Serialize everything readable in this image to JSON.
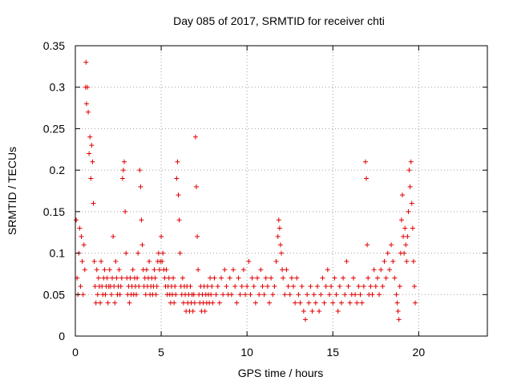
{
  "chart_data": {
    "type": "scatter",
    "title": "Day 085 of 2017, SRMTID for receiver chti",
    "xlabel": "GPS time / hours",
    "ylabel": "SRMTID / TECUs",
    "xlim": [
      0,
      24
    ],
    "ylim": [
      0,
      0.35
    ],
    "xticks": [
      0,
      5,
      10,
      15,
      20
    ],
    "yticks": [
      0,
      0.05,
      0.1,
      0.15,
      0.2,
      0.25,
      0.3,
      0.35
    ],
    "ytick_labels": [
      "0",
      "0.05",
      "0.1",
      "0.15",
      "0.2",
      "0.25",
      "0.3",
      "0.35"
    ],
    "grid": true,
    "marker": "+",
    "color": "#e00000",
    "series": [
      {
        "values": [
          [
            0.05,
            0.14
          ],
          [
            0.1,
            0.07
          ],
          [
            0.15,
            0.05
          ],
          [
            0.2,
            0.1
          ],
          [
            0.25,
            0.13
          ],
          [
            0.3,
            0.06
          ],
          [
            0.35,
            0.12
          ],
          [
            0.4,
            0.09
          ],
          [
            0.45,
            0.05
          ],
          [
            0.5,
            0.11
          ],
          [
            0.55,
            0.08
          ],
          [
            0.6,
            0.3
          ],
          [
            0.62,
            0.33
          ],
          [
            0.65,
            0.28
          ],
          [
            0.7,
            0.3
          ],
          [
            0.75,
            0.27
          ],
          [
            0.8,
            0.22
          ],
          [
            0.85,
            0.24
          ],
          [
            0.9,
            0.19
          ],
          [
            0.95,
            0.23
          ],
          [
            1.0,
            0.21
          ],
          [
            1.05,
            0.16
          ],
          [
            1.1,
            0.09
          ],
          [
            1.15,
            0.06
          ],
          [
            1.2,
            0.04
          ],
          [
            1.25,
            0.08
          ],
          [
            1.3,
            0.05
          ],
          [
            1.35,
            0.07
          ],
          [
            1.4,
            0.06
          ],
          [
            1.45,
            0.04
          ],
          [
            1.5,
            0.09
          ],
          [
            1.55,
            0.06
          ],
          [
            1.6,
            0.05
          ],
          [
            1.65,
            0.07
          ],
          [
            1.7,
            0.08
          ],
          [
            1.75,
            0.05
          ],
          [
            1.8,
            0.06
          ],
          [
            1.85,
            0.07
          ],
          [
            1.9,
            0.04
          ],
          [
            1.95,
            0.06
          ],
          [
            2.0,
            0.08
          ],
          [
            2.05,
            0.06
          ],
          [
            2.1,
            0.05
          ],
          [
            2.15,
            0.07
          ],
          [
            2.2,
            0.12
          ],
          [
            2.25,
            0.06
          ],
          [
            2.3,
            0.04
          ],
          [
            2.35,
            0.09
          ],
          [
            2.4,
            0.07
          ],
          [
            2.45,
            0.05
          ],
          [
            2.5,
            0.06
          ],
          [
            2.55,
            0.08
          ],
          [
            2.6,
            0.05
          ],
          [
            2.65,
            0.06
          ],
          [
            2.7,
            0.07
          ],
          [
            2.75,
            0.19
          ],
          [
            2.8,
            0.2
          ],
          [
            2.85,
            0.21
          ],
          [
            2.9,
            0.15
          ],
          [
            2.95,
            0.1
          ],
          [
            3.0,
            0.07
          ],
          [
            3.05,
            0.05
          ],
          [
            3.1,
            0.06
          ],
          [
            3.15,
            0.04
          ],
          [
            3.2,
            0.07
          ],
          [
            3.25,
            0.05
          ],
          [
            3.3,
            0.06
          ],
          [
            3.35,
            0.08
          ],
          [
            3.4,
            0.05
          ],
          [
            3.45,
            0.07
          ],
          [
            3.5,
            0.06
          ],
          [
            3.55,
            0.05
          ],
          [
            3.6,
            0.07
          ],
          [
            3.65,
            0.1
          ],
          [
            3.7,
            0.06
          ],
          [
            3.75,
            0.2
          ],
          [
            3.8,
            0.18
          ],
          [
            3.85,
            0.14
          ],
          [
            3.9,
            0.11
          ],
          [
            3.95,
            0.08
          ],
          [
            4.0,
            0.06
          ],
          [
            4.05,
            0.07
          ],
          [
            4.1,
            0.05
          ],
          [
            4.15,
            0.08
          ],
          [
            4.2,
            0.06
          ],
          [
            4.25,
            0.07
          ],
          [
            4.3,
            0.09
          ],
          [
            4.35,
            0.05
          ],
          [
            4.4,
            0.06
          ],
          [
            4.45,
            0.07
          ],
          [
            4.5,
            0.05
          ],
          [
            4.55,
            0.06
          ],
          [
            4.6,
            0.08
          ],
          [
            4.65,
            0.07
          ],
          [
            4.7,
            0.05
          ],
          [
            4.75,
            0.06
          ],
          [
            4.8,
            0.09
          ],
          [
            4.85,
            0.1
          ],
          [
            4.9,
            0.08
          ],
          [
            4.95,
            0.09
          ],
          [
            5.0,
            0.12
          ],
          [
            5.05,
            0.09
          ],
          [
            5.1,
            0.1
          ],
          [
            5.15,
            0.08
          ],
          [
            5.2,
            0.07
          ],
          [
            5.25,
            0.06
          ],
          [
            5.3,
            0.08
          ],
          [
            5.35,
            0.05
          ],
          [
            5.4,
            0.06
          ],
          [
            5.45,
            0.07
          ],
          [
            5.5,
            0.05
          ],
          [
            5.55,
            0.04
          ],
          [
            5.6,
            0.06
          ],
          [
            5.65,
            0.05
          ],
          [
            5.7,
            0.07
          ],
          [
            5.75,
            0.04
          ],
          [
            5.8,
            0.06
          ],
          [
            5.85,
            0.05
          ],
          [
            5.9,
            0.19
          ],
          [
            5.95,
            0.21
          ],
          [
            6.0,
            0.17
          ],
          [
            6.05,
            0.14
          ],
          [
            6.1,
            0.1
          ],
          [
            6.15,
            0.06
          ],
          [
            6.2,
            0.05
          ],
          [
            6.25,
            0.07
          ],
          [
            6.3,
            0.04
          ],
          [
            6.35,
            0.06
          ],
          [
            6.4,
            0.05
          ],
          [
            6.45,
            0.03
          ],
          [
            6.5,
            0.06
          ],
          [
            6.55,
            0.04
          ],
          [
            6.6,
            0.05
          ],
          [
            6.65,
            0.03
          ],
          [
            6.7,
            0.06
          ],
          [
            6.75,
            0.04
          ],
          [
            6.8,
            0.05
          ],
          [
            6.85,
            0.03
          ],
          [
            6.9,
            0.05
          ],
          [
            6.95,
            0.04
          ],
          [
            7.0,
            0.24
          ],
          [
            7.05,
            0.18
          ],
          [
            7.1,
            0.12
          ],
          [
            7.15,
            0.08
          ],
          [
            7.2,
            0.05
          ],
          [
            7.25,
            0.04
          ],
          [
            7.3,
            0.06
          ],
          [
            7.35,
            0.03
          ],
          [
            7.4,
            0.05
          ],
          [
            7.45,
            0.04
          ],
          [
            7.5,
            0.06
          ],
          [
            7.55,
            0.03
          ],
          [
            7.6,
            0.05
          ],
          [
            7.65,
            0.04
          ],
          [
            7.7,
            0.06
          ],
          [
            7.75,
            0.05
          ],
          [
            7.8,
            0.04
          ],
          [
            7.85,
            0.07
          ],
          [
            7.9,
            0.05
          ],
          [
            7.95,
            0.06
          ],
          [
            8.0,
            0.04
          ],
          [
            8.1,
            0.07
          ],
          [
            8.2,
            0.05
          ],
          [
            8.3,
            0.06
          ],
          [
            8.4,
            0.04
          ],
          [
            8.5,
            0.07
          ],
          [
            8.6,
            0.05
          ],
          [
            8.7,
            0.08
          ],
          [
            8.8,
            0.06
          ],
          [
            8.9,
            0.05
          ],
          [
            9.0,
            0.07
          ],
          [
            9.1,
            0.05
          ],
          [
            9.2,
            0.08
          ],
          [
            9.3,
            0.06
          ],
          [
            9.4,
            0.04
          ],
          [
            9.5,
            0.07
          ],
          [
            9.6,
            0.05
          ],
          [
            9.7,
            0.06
          ],
          [
            9.8,
            0.08
          ],
          [
            9.9,
            0.05
          ],
          [
            10.0,
            0.06
          ],
          [
            10.1,
            0.09
          ],
          [
            10.2,
            0.05
          ],
          [
            10.3,
            0.07
          ],
          [
            10.4,
            0.06
          ],
          [
            10.5,
            0.04
          ],
          [
            10.6,
            0.07
          ],
          [
            10.7,
            0.05
          ],
          [
            10.8,
            0.08
          ],
          [
            10.9,
            0.06
          ],
          [
            11.0,
            0.05
          ],
          [
            11.1,
            0.07
          ],
          [
            11.2,
            0.06
          ],
          [
            11.3,
            0.04
          ],
          [
            11.4,
            0.07
          ],
          [
            11.5,
            0.05
          ],
          [
            11.6,
            0.06
          ],
          [
            11.7,
            0.09
          ],
          [
            11.8,
            0.12
          ],
          [
            11.85,
            0.14
          ],
          [
            11.9,
            0.13
          ],
          [
            11.95,
            0.11
          ],
          [
            12.0,
            0.1
          ],
          [
            12.05,
            0.08
          ],
          [
            12.1,
            0.07
          ],
          [
            12.2,
            0.05
          ],
          [
            12.3,
            0.08
          ],
          [
            12.4,
            0.06
          ],
          [
            12.5,
            0.05
          ],
          [
            12.6,
            0.07
          ],
          [
            12.7,
            0.06
          ],
          [
            12.8,
            0.04
          ],
          [
            12.9,
            0.07
          ],
          [
            13.0,
            0.05
          ],
          [
            13.1,
            0.04
          ],
          [
            13.2,
            0.06
          ],
          [
            13.3,
            0.03
          ],
          [
            13.4,
            0.02
          ],
          [
            13.5,
            0.05
          ],
          [
            13.6,
            0.04
          ],
          [
            13.7,
            0.06
          ],
          [
            13.8,
            0.03
          ],
          [
            13.9,
            0.05
          ],
          [
            14.0,
            0.04
          ],
          [
            14.1,
            0.06
          ],
          [
            14.2,
            0.03
          ],
          [
            14.3,
            0.05
          ],
          [
            14.4,
            0.07
          ],
          [
            14.5,
            0.04
          ],
          [
            14.6,
            0.06
          ],
          [
            14.7,
            0.08
          ],
          [
            14.8,
            0.05
          ],
          [
            14.9,
            0.06
          ],
          [
            15.0,
            0.04
          ],
          [
            15.1,
            0.07
          ],
          [
            15.2,
            0.05
          ],
          [
            15.3,
            0.03
          ],
          [
            15.4,
            0.06
          ],
          [
            15.5,
            0.04
          ],
          [
            15.6,
            0.07
          ],
          [
            15.7,
            0.05
          ],
          [
            15.8,
            0.09
          ],
          [
            15.9,
            0.06
          ],
          [
            16.0,
            0.04
          ],
          [
            16.1,
            0.05
          ],
          [
            16.2,
            0.07
          ],
          [
            16.3,
            0.05
          ],
          [
            16.4,
            0.04
          ],
          [
            16.5,
            0.06
          ],
          [
            16.6,
            0.05
          ],
          [
            16.7,
            0.04
          ],
          [
            16.8,
            0.06
          ],
          [
            16.9,
            0.21
          ],
          [
            16.95,
            0.19
          ],
          [
            17.0,
            0.11
          ],
          [
            17.05,
            0.07
          ],
          [
            17.1,
            0.05
          ],
          [
            17.2,
            0.06
          ],
          [
            17.3,
            0.05
          ],
          [
            17.4,
            0.08
          ],
          [
            17.5,
            0.06
          ],
          [
            17.6,
            0.07
          ],
          [
            17.7,
            0.05
          ],
          [
            17.8,
            0.08
          ],
          [
            17.9,
            0.06
          ],
          [
            18.0,
            0.09
          ],
          [
            18.1,
            0.07
          ],
          [
            18.2,
            0.1
          ],
          [
            18.3,
            0.08
          ],
          [
            18.4,
            0.11
          ],
          [
            18.5,
            0.09
          ],
          [
            18.6,
            0.07
          ],
          [
            18.7,
            0.05
          ],
          [
            18.75,
            0.04
          ],
          [
            18.8,
            0.03
          ],
          [
            18.85,
            0.02
          ],
          [
            18.9,
            0.06
          ],
          [
            18.95,
            0.1
          ],
          [
            19.0,
            0.14
          ],
          [
            19.05,
            0.17
          ],
          [
            19.1,
            0.12
          ],
          [
            19.15,
            0.1
          ],
          [
            19.2,
            0.13
          ],
          [
            19.25,
            0.11
          ],
          [
            19.3,
            0.09
          ],
          [
            19.35,
            0.12
          ],
          [
            19.4,
            0.15
          ],
          [
            19.45,
            0.2
          ],
          [
            19.5,
            0.18
          ],
          [
            19.55,
            0.21
          ],
          [
            19.6,
            0.16
          ],
          [
            19.65,
            0.13
          ],
          [
            19.7,
            0.09
          ],
          [
            19.75,
            0.06
          ],
          [
            19.8,
            0.04
          ]
        ]
      }
    ]
  }
}
